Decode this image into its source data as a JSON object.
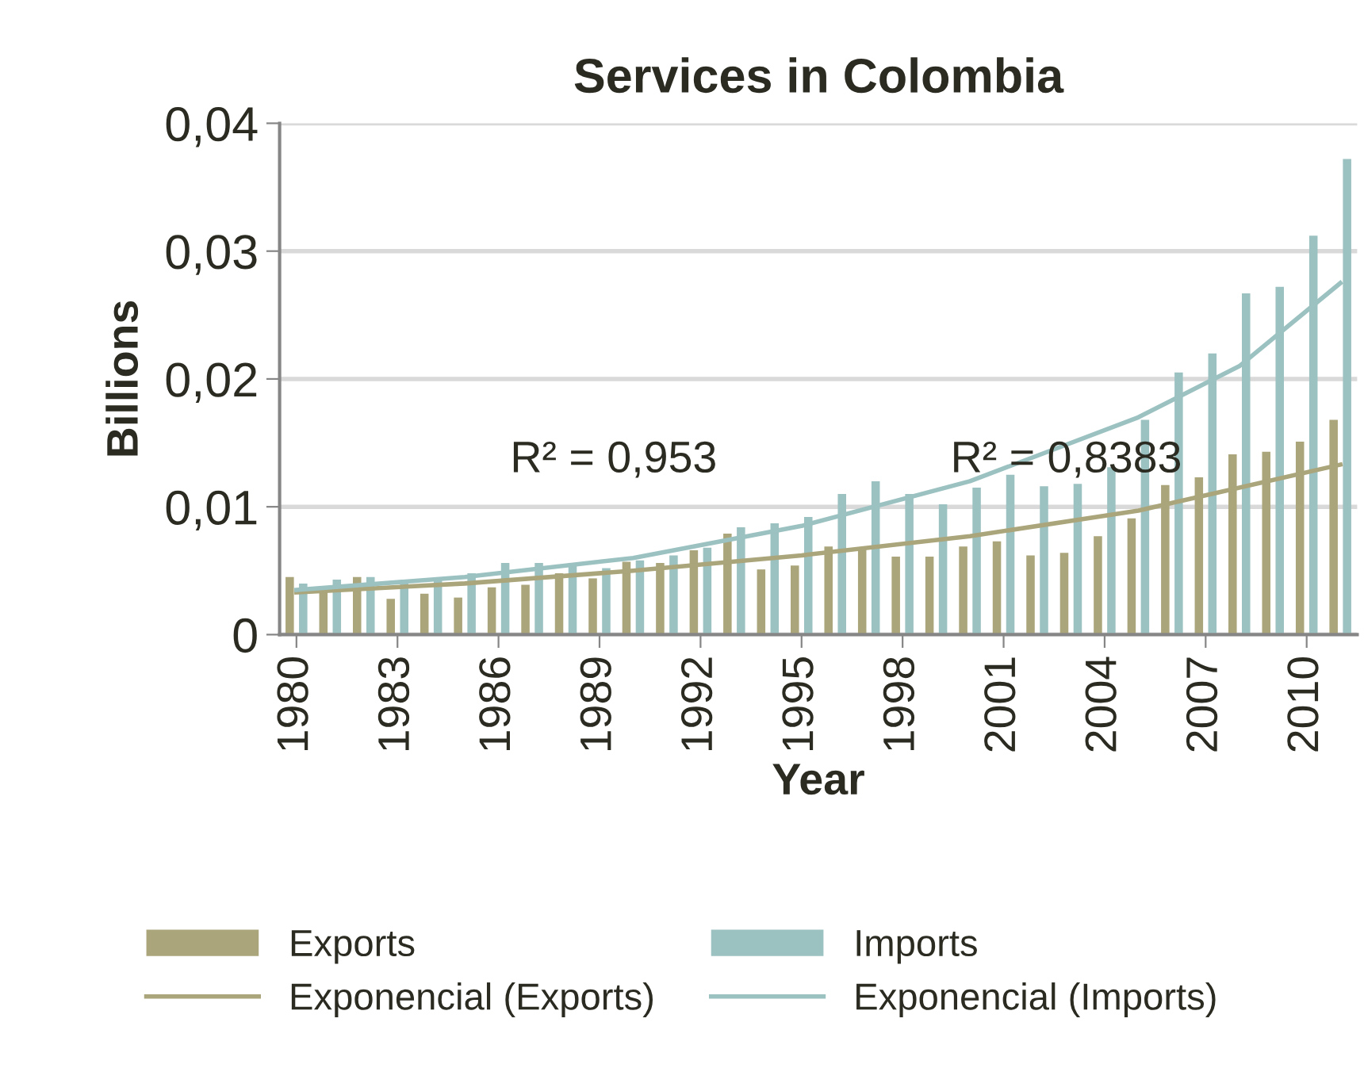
{
  "chart_data": {
    "type": "bar",
    "title": "Services in Colombia",
    "xlabel": "Year",
    "ylabel": "Billions",
    "x": [
      1980,
      1981,
      1982,
      1983,
      1984,
      1985,
      1986,
      1987,
      1988,
      1989,
      1990,
      1991,
      1992,
      1993,
      1994,
      1995,
      1996,
      1997,
      1998,
      1999,
      2000,
      2001,
      2002,
      2003,
      2004,
      2005,
      2006,
      2007,
      2008,
      2009,
      2010,
      2011
    ],
    "series": [
      {
        "name": "Exports",
        "color": "#aaa57a",
        "values": [
          0.0045,
          0.0035,
          0.0045,
          0.0028,
          0.0032,
          0.0029,
          0.0037,
          0.0039,
          0.0048,
          0.0044,
          0.0057,
          0.0056,
          0.0066,
          0.0079,
          0.0051,
          0.0054,
          0.0069,
          0.0067,
          0.0061,
          0.0061,
          0.0069,
          0.0073,
          0.0062,
          0.0064,
          0.0077,
          0.0091,
          0.0117,
          0.0123,
          0.0141,
          0.0143,
          0.0151,
          0.0168
        ]
      },
      {
        "name": "Imports",
        "color": "#9cc1c1",
        "values": [
          0.004,
          0.0043,
          0.0045,
          0.0042,
          0.0043,
          0.0048,
          0.0056,
          0.0056,
          0.0056,
          0.0052,
          0.0058,
          0.0062,
          0.0068,
          0.0084,
          0.0087,
          0.0092,
          0.011,
          0.012,
          0.011,
          0.0102,
          0.0115,
          0.0125,
          0.0116,
          0.0118,
          0.0131,
          0.0168,
          0.0205,
          0.022,
          0.0267,
          0.0272,
          0.0312,
          0.0372
        ]
      },
      {
        "name": "Exponencial (Exports)",
        "type": "line",
        "color": "#aaa57a",
        "x": [
          1980,
          1985,
          1990,
          1995,
          2000,
          2005,
          2011
        ],
        "values": [
          0.0033,
          0.004,
          0.005,
          0.0062,
          0.0077,
          0.0097,
          0.0133
        ]
      },
      {
        "name": "Exponencial (Imports)",
        "type": "line",
        "color": "#9cc1c1",
        "x": [
          1980,
          1985,
          1990,
          1995,
          2000,
          2005,
          2008,
          2011
        ],
        "values": [
          0.0035,
          0.0045,
          0.006,
          0.0085,
          0.012,
          0.017,
          0.021,
          0.0275
        ]
      }
    ],
    "xlim": [
      1979.5,
      2011.5
    ],
    "xticks": [
      1980,
      1983,
      1986,
      1989,
      1992,
      1995,
      1998,
      2001,
      2004,
      2007,
      2010
    ],
    "ylim": [
      0,
      0.04
    ],
    "yticks": [
      {
        "value": 0,
        "label": "0"
      },
      {
        "value": 0.01,
        "label": "0,01"
      },
      {
        "value": 0.02,
        "label": "0,02"
      },
      {
        "value": 0.03,
        "label": "0,03"
      },
      {
        "value": 0.04,
        "label": "0,04"
      }
    ],
    "annotations": [
      "R² = 0,953",
      "R² = 0,8383"
    ],
    "grid": "y",
    "legend": "bottom"
  }
}
